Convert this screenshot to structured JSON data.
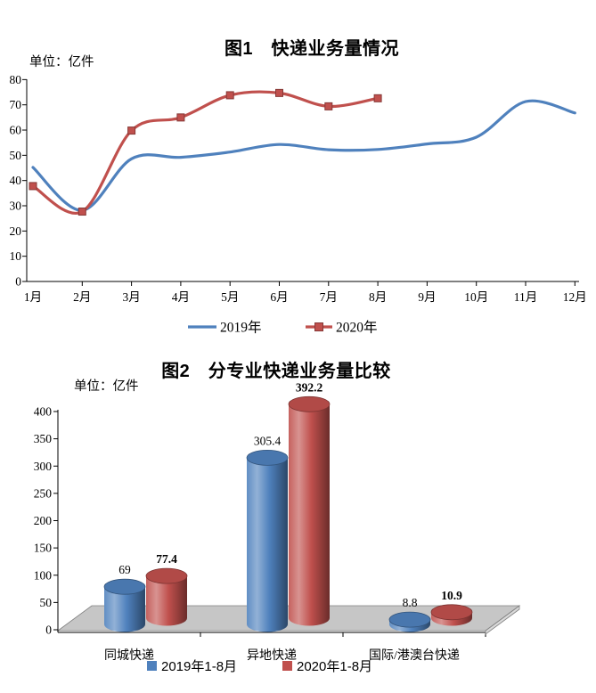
{
  "page_background": "#ffffff",
  "colors": {
    "series_2019": "#4F81BD",
    "series_2020": "#C0504D",
    "axis": "#000000",
    "floor_fill": "#C6C6C6",
    "floor_side_fill": "#D9D9D9",
    "floor_edge": "#808080"
  },
  "figure1": {
    "title": "图1　快递业务量情况",
    "unit_label": "单位：亿件",
    "chart_data": {
      "type": "line",
      "categories": [
        "1月",
        "2月",
        "3月",
        "4月",
        "5月",
        "6月",
        "7月",
        "8月",
        "9月",
        "10月",
        "11月",
        "12月"
      ],
      "series": [
        {
          "name": "2019年",
          "color": "#4F81BD",
          "marker": "none",
          "values": [
            45.2,
            28.2,
            48.6,
            49.2,
            51.3,
            54.3,
            52.2,
            52.3,
            54.5,
            57.2,
            71.3,
            66.8
          ]
        },
        {
          "name": "2020年",
          "color": "#C0504D",
          "marker": "square",
          "values": [
            37.8,
            27.7,
            59.8,
            65.0,
            73.8,
            74.7,
            69.4,
            72.6
          ]
        }
      ],
      "ylim": [
        0,
        80
      ],
      "ytick_step": 10,
      "grid": false,
      "legend_position": "bottom",
      "smoothed_lines": true
    }
  },
  "figure2": {
    "title": "图2　分专业快递业务量比较",
    "unit_label": "单位：亿件",
    "chart_data": {
      "type": "bar",
      "style": "3d-cylinder",
      "categories": [
        "同城快递",
        "异地快递",
        "国际/港澳台快递"
      ],
      "series": [
        {
          "name": "2019年1-8月",
          "color": "#4F81BD",
          "values": [
            69,
            305.4,
            8.8
          ],
          "labels": [
            "69",
            "305.4",
            "8.8"
          ],
          "label_bold": false
        },
        {
          "name": "2020年1-8月",
          "color": "#C0504D",
          "values": [
            77.4,
            392.2,
            10.9
          ],
          "labels": [
            "77.4",
            "392.2",
            "10.9"
          ],
          "label_bold": true
        }
      ],
      "ylim": [
        0,
        400
      ],
      "ytick_step": 50,
      "grid": false,
      "legend_position": "bottom"
    }
  }
}
